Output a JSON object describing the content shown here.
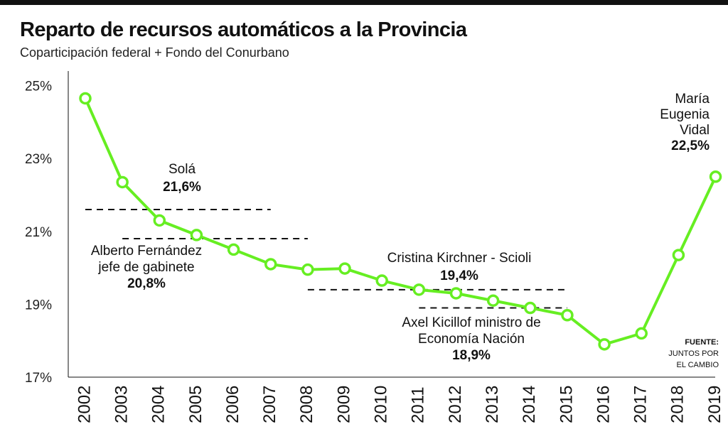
{
  "title": "Reparto de recursos automáticos a la Provincia",
  "subtitle": "Coparticipación federal + Fondo del Conurbano",
  "colors": {
    "line": "#66EE22",
    "text": "#111111",
    "reference": "#111111"
  },
  "chart_data": {
    "type": "line",
    "title": "Reparto de recursos automáticos a la Provincia",
    "subtitle": "Coparticipación federal + Fondo del Conurbano",
    "xlabel": "",
    "ylabel": "",
    "categories": [
      "2002",
      "2003",
      "2004",
      "2005",
      "2006",
      "2007",
      "2008",
      "2009",
      "2010",
      "2011",
      "2012",
      "2013",
      "2014",
      "2015",
      "2016",
      "2017",
      "2018",
      "2019"
    ],
    "y_ticks": [
      17,
      19,
      21,
      23,
      25
    ],
    "y_tick_labels": [
      "17%",
      "19%",
      "21%",
      "23%",
      "25%"
    ],
    "ylim": [
      17,
      25.4
    ],
    "grid": false,
    "series": [
      {
        "values": [
          24.65,
          22.35,
          21.3,
          20.9,
          20.5,
          20.1,
          19.95,
          19.98,
          19.65,
          19.4,
          19.3,
          19.1,
          18.9,
          18.7,
          17.9,
          18.2,
          20.35,
          22.5
        ]
      }
    ],
    "reference_lines": [
      {
        "id": "sola",
        "value": 21.6,
        "from": "2002",
        "to": "2007"
      },
      {
        "id": "fernandez",
        "value": 20.8,
        "from": "2003",
        "to": "2008"
      },
      {
        "id": "cristina",
        "value": 19.4,
        "from": "2008",
        "to": "2015"
      },
      {
        "id": "kicillof",
        "value": 18.9,
        "from": "2011",
        "to": "2015"
      }
    ],
    "annotations": [
      {
        "id": "sola",
        "lines": [
          "Solá"
        ],
        "value_label": "21,6%",
        "align": "middle"
      },
      {
        "id": "fernandez",
        "lines": [
          "Alberto Fernández",
          "jefe de gabinete"
        ],
        "value_label": "20,8%",
        "align": "middle"
      },
      {
        "id": "cristina",
        "lines": [
          "Cristina Kirchner - Scioli"
        ],
        "value_label": "19,4%",
        "align": "middle"
      },
      {
        "id": "kicillof",
        "lines": [
          "Axel Kicillof ministro de",
          "Economía Nación"
        ],
        "value_label": "18,9%",
        "align": "middle"
      },
      {
        "id": "vidal",
        "lines": [
          "María",
          "Eugenia",
          "Vidal"
        ],
        "value_label": "22,5%",
        "align": "end"
      }
    ],
    "source": {
      "label": "FUENTE:",
      "lines": [
        "JUNTOS POR",
        "EL CAMBIO"
      ]
    }
  }
}
